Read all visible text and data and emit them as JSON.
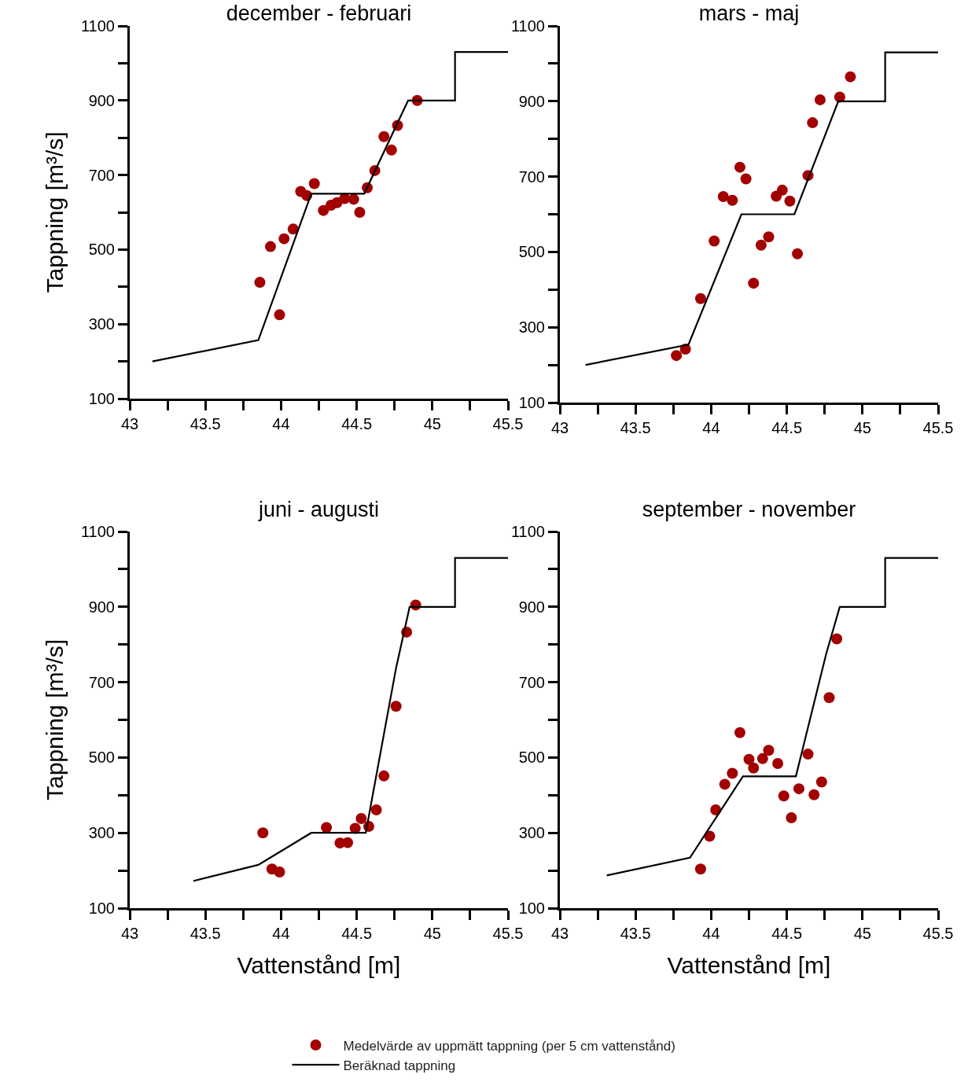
{
  "chart_data": [
    {
      "type": "scatter",
      "title": "december - februari",
      "ylabel": "Tappning [m³/s]",
      "xlim": [
        43,
        45.5
      ],
      "ylim": [
        100,
        1100
      ],
      "xticks": [
        43,
        {
          "value": 43.25,
          "label": null
        },
        43.5,
        {
          "value": 43.75,
          "label": null
        },
        44,
        {
          "value": 44.25,
          "label": null
        },
        44.5,
        {
          "value": 44.75,
          "label": null
        },
        45,
        {
          "value": 45.25,
          "label": null
        },
        45.5
      ],
      "yticks": [
        100,
        {
          "value": 200,
          "label": null
        },
        300,
        {
          "value": 400,
          "label": null
        },
        500,
        {
          "value": 600,
          "label": null
        },
        700,
        {
          "value": 800,
          "label": null
        },
        900,
        {
          "value": 1000,
          "label": null
        },
        1100
      ],
      "grid": false,
      "legend": "bottom",
      "line_style": "solid",
      "series": [
        {
          "name": "Medelvärde av uppmätt tappning (per 5 cm vattenstånd)",
          "marker": "circle",
          "color": "#a30000",
          "x": [
            43.86,
            43.93,
            43.99,
            44.02,
            44.08,
            44.13,
            44.17,
            44.22,
            44.28,
            44.33,
            44.37,
            44.42,
            44.48,
            44.52,
            44.57,
            44.62,
            44.68,
            44.73,
            44.77,
            44.9
          ],
          "values": [
            412,
            508,
            325,
            529,
            555,
            656,
            645,
            677,
            605,
            619,
            626,
            637,
            635,
            600,
            666,
            712,
            803,
            767,
            833,
            900
          ]
        },
        {
          "name": "Beräknad tappning",
          "type": "line",
          "marker": "none",
          "color": "#000000",
          "x": [
            43.15,
            43.85,
            44.2,
            44.55,
            44.84,
            45.15,
            45.15,
            45.5
          ],
          "values": [
            200,
            257,
            650,
            650,
            900,
            900,
            1030,
            1030
          ]
        }
      ]
    },
    {
      "type": "scatter",
      "title": "mars - maj",
      "xlim": [
        43,
        45.5
      ],
      "ylim": [
        100,
        1100
      ],
      "xticks": [
        43,
        {
          "value": 43.25,
          "label": null
        },
        43.5,
        {
          "value": 43.75,
          "label": null
        },
        44,
        {
          "value": 44.25,
          "label": null
        },
        44.5,
        {
          "value": 44.75,
          "label": null
        },
        45,
        {
          "value": 45.25,
          "label": null
        },
        45.5
      ],
      "yticks": [
        100,
        {
          "value": 200,
          "label": null
        },
        300,
        {
          "value": 400,
          "label": null
        },
        500,
        {
          "value": 600,
          "label": null
        },
        700,
        {
          "value": 800,
          "label": null
        },
        900,
        {
          "value": 1000,
          "label": null
        },
        1100
      ],
      "grid": false,
      "line_style": "solid",
      "series": [
        {
          "marker": "circle",
          "color": "#a30000",
          "x": [
            43.77,
            43.83,
            43.93,
            44.02,
            44.08,
            44.14,
            44.19,
            44.23,
            44.28,
            44.33,
            44.38,
            44.43,
            44.47,
            44.52,
            44.57,
            44.64,
            44.67,
            44.72,
            44.85,
            44.92
          ],
          "values": [
            225,
            242,
            376,
            529,
            647,
            637,
            725,
            694,
            417,
            518,
            540,
            648,
            664,
            635,
            495,
            703,
            843,
            904,
            911,
            965
          ]
        },
        {
          "type": "line",
          "marker": "none",
          "color": "#000000",
          "x": [
            43.17,
            43.85,
            44.2,
            44.55,
            44.84,
            45.15,
            45.15,
            45.5
          ],
          "values": [
            200,
            254,
            600,
            600,
            900,
            900,
            1030,
            1030
          ]
        }
      ]
    },
    {
      "type": "scatter",
      "title": "juni - augusti",
      "xlabel": "Vattenstånd [m]",
      "ylabel": "Tappning [m³/s]",
      "xlim": [
        43,
        45.5
      ],
      "ylim": [
        100,
        1100
      ],
      "xticks": [
        43,
        {
          "value": 43.25,
          "label": null
        },
        43.5,
        {
          "value": 43.75,
          "label": null
        },
        44,
        {
          "value": 44.25,
          "label": null
        },
        44.5,
        {
          "value": 44.75,
          "label": null
        },
        45,
        {
          "value": 45.25,
          "label": null
        },
        45.5
      ],
      "yticks": [
        100,
        {
          "value": 200,
          "label": null
        },
        300,
        {
          "value": 400,
          "label": null
        },
        500,
        {
          "value": 600,
          "label": null
        },
        700,
        {
          "value": 800,
          "label": null
        },
        900,
        {
          "value": 1000,
          "label": null
        },
        1100
      ],
      "grid": false,
      "line_style": "solid",
      "series": [
        {
          "marker": "circle",
          "color": "#a30000",
          "x": [
            43.88,
            43.94,
            43.99,
            44.3,
            44.39,
            44.44,
            44.49,
            44.53,
            44.58,
            44.63,
            44.68,
            44.76,
            44.83,
            44.89
          ],
          "values": [
            300,
            204,
            196,
            314,
            273,
            274,
            312,
            338,
            317,
            361,
            451,
            636,
            833,
            905
          ]
        },
        {
          "type": "line",
          "marker": "none",
          "color": "#000000",
          "x": [
            43.42,
            43.85,
            44.2,
            44.56,
            44.76,
            44.85,
            45.15,
            45.15,
            45.5
          ],
          "values": [
            172,
            215,
            300,
            300,
            737,
            900,
            900,
            1030,
            1030
          ]
        }
      ]
    },
    {
      "type": "scatter",
      "title": "september - november",
      "xlabel": "Vattenstånd [m]",
      "xlim": [
        43,
        45.5
      ],
      "ylim": [
        100,
        1100
      ],
      "xticks": [
        43,
        {
          "value": 43.25,
          "label": null
        },
        43.5,
        {
          "value": 43.75,
          "label": null
        },
        44,
        {
          "value": 44.25,
          "label": null
        },
        44.5,
        {
          "value": 44.75,
          "label": null
        },
        45,
        {
          "value": 45.25,
          "label": null
        },
        45.5
      ],
      "yticks": [
        100,
        {
          "value": 200,
          "label": null
        },
        300,
        {
          "value": 400,
          "label": null
        },
        500,
        {
          "value": 600,
          "label": null
        },
        700,
        {
          "value": 800,
          "label": null
        },
        900,
        {
          "value": 1000,
          "label": null
        },
        1100
      ],
      "grid": false,
      "line_style": "solid",
      "series": [
        {
          "marker": "circle",
          "color": "#a30000",
          "x": [
            43.93,
            43.99,
            44.03,
            44.09,
            44.14,
            44.19,
            44.25,
            44.28,
            44.34,
            44.38,
            44.44,
            44.48,
            44.53,
            44.58,
            44.64,
            44.68,
            44.73,
            44.78,
            44.83
          ],
          "values": [
            204,
            291,
            361,
            429,
            458,
            566,
            495,
            472,
            497,
            519,
            484,
            398,
            340,
            417,
            509,
            401,
            435,
            659,
            815
          ]
        },
        {
          "type": "line",
          "marker": "none",
          "color": "#000000",
          "x": [
            43.31,
            43.86,
            44.21,
            44.56,
            44.76,
            44.85,
            45.15,
            45.15,
            45.5
          ],
          "values": [
            187,
            234,
            450,
            450,
            775,
            900,
            900,
            1030,
            1030
          ]
        }
      ]
    }
  ]
}
